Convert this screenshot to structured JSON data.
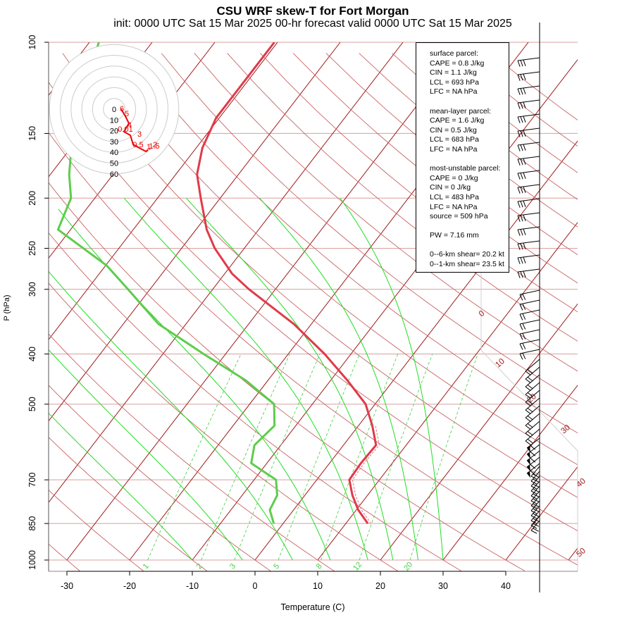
{
  "chart_data": {
    "type": "line",
    "title": "CSU WRF skew-T for Fort Morgan",
    "subtitle": "init: 0000 UTC Sat 15 Mar 2025    00-hr forecast valid 0000 UTC Sat 15 Mar 2025",
    "xlabel": "Temperature (C)",
    "ylabel": "P (hPa)",
    "x_ticks": [
      -30,
      -20,
      -10,
      0,
      10,
      20,
      30,
      40
    ],
    "y_ticks": [
      100,
      150,
      200,
      250,
      300,
      400,
      500,
      700,
      850,
      1000
    ],
    "y_scale": "log",
    "isotherm_labels": [
      0,
      10,
      20,
      30,
      40,
      50
    ],
    "mixing_ratio_labels": [
      1,
      2,
      3,
      5,
      8,
      12,
      20
    ],
    "series": [
      {
        "name": "temperature",
        "color": "#e03a4a",
        "pressure": [
          850,
          800,
          750,
          700,
          650,
          600,
          550,
          500,
          450,
          400,
          350,
          300,
          280,
          250,
          230,
          200,
          180,
          160,
          140,
          120,
          100
        ],
        "temperature": [
          13.5,
          10.3,
          7.6,
          5.2,
          5.0,
          5.2,
          2.2,
          -1.5,
          -7.3,
          -14.2,
          -22.8,
          -34.2,
          -38.8,
          -44.7,
          -48.3,
          -53.1,
          -56.6,
          -59.0,
          -60.5,
          -60.5,
          -60.5
        ]
      },
      {
        "name": "dewpoint",
        "color": "#5ecc4c",
        "pressure": [
          850,
          800,
          750,
          700,
          650,
          600,
          550,
          500,
          450,
          400,
          350,
          300,
          270,
          230,
          200,
          180,
          160,
          140,
          120,
          100
        ],
        "temperature": [
          -1.5,
          -3.8,
          -4.4,
          -6.5,
          -12.5,
          -14.2,
          -13.4,
          -16.1,
          -23.5,
          -33.5,
          -44.4,
          -53.5,
          -59.8,
          -72.0,
          -73.8,
          -77.0,
          -79.9,
          -82.9,
          -85.5,
          -88.5
        ]
      }
    ],
    "hodograph": {
      "ring_labels": [
        0,
        10,
        20,
        30,
        40,
        50,
        60
      ],
      "point_labels": [
        "6",
        "5",
        "4",
        "0.01",
        "3",
        "2",
        "0.5",
        "1",
        "1.5"
      ]
    },
    "info_box": {
      "lines": [
        "surface parcel:",
        "CAPE = 0.8 J/kg",
        "CIN = 1.1 J/kg",
        "LCL = 693 hPa",
        "LFC = NA hPa",
        "",
        "mean-layer parcel:",
        "CAPE = 1.6 J/kg",
        "CIN = 0.5 J/kg",
        "LCL = 683 hPa",
        "LFC = NA hPa",
        "",
        "most-unstable parcel:",
        "CAPE = 0 J/kg",
        "CIN = 0 J/kg",
        "LCL = 483 hPa",
        "LFC = NA hPa",
        "source = 509 hPa",
        "",
        "PW =  7.16 mm",
        "",
        "0--6-km shear= 20.2 kt",
        "0--1-km shear= 23.5 kt"
      ]
    },
    "colors": {
      "isobar": "#d8a0a0",
      "isotherm": "#a01818",
      "dry_adiabat": "#c86464",
      "moist_adiabat": "#22dd22",
      "mixing_ratio": "#44cc44",
      "frame": "#888888"
    }
  }
}
